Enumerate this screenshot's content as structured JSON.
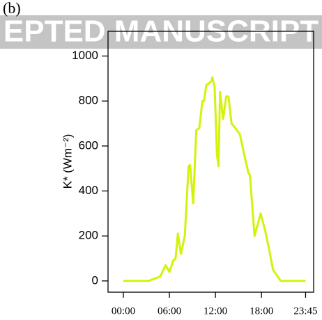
{
  "chart_data": {
    "type": "line",
    "panel_label": "(b)",
    "watermark": "EPTED MANUSCRIPT",
    "ylabel": "K* (Wm⁻²)",
    "x": [
      0,
      3.3,
      4.8,
      5.5,
      6,
      6.5,
      6.8,
      7.1,
      7.5,
      8,
      8.5,
      8.7,
      9.1,
      9.5,
      9.9,
      10.3,
      10.5,
      10.8,
      11.2,
      11.5,
      11.6,
      11.9,
      12.2,
      12.4,
      12.6,
      13,
      13.4,
      13.7,
      14.1,
      14.6,
      15.2,
      15.7,
      16.3,
      16.5,
      17.1,
      17.9,
      18.5,
      19,
      19.5,
      20.5,
      23.75
    ],
    "series": [
      {
        "color": "#d4f20c",
        "values": [
          0,
          0,
          20,
          70,
          40,
          90,
          100,
          210,
          120,
          200,
          510,
          515,
          345,
          670,
          680,
          800,
          800,
          870,
          880,
          890,
          905,
          860,
          560,
          510,
          840,
          720,
          820,
          820,
          700,
          680,
          650,
          570,
          480,
          470,
          200,
          300,
          220,
          140,
          50,
          0,
          0
        ]
      }
    ],
    "xlim": [
      -2,
      24.8
    ],
    "xticks": [
      {
        "value": 0,
        "label": "00:00"
      },
      {
        "value": 6,
        "label": "06:00"
      },
      {
        "value": 12,
        "label": "12:00"
      },
      {
        "value": 18,
        "label": "18:00"
      },
      {
        "value": 23.75,
        "label": "23:45"
      }
    ],
    "ylim": [
      -50,
      1110
    ],
    "yticks": [
      0,
      200,
      400,
      600,
      800,
      1000
    ]
  }
}
